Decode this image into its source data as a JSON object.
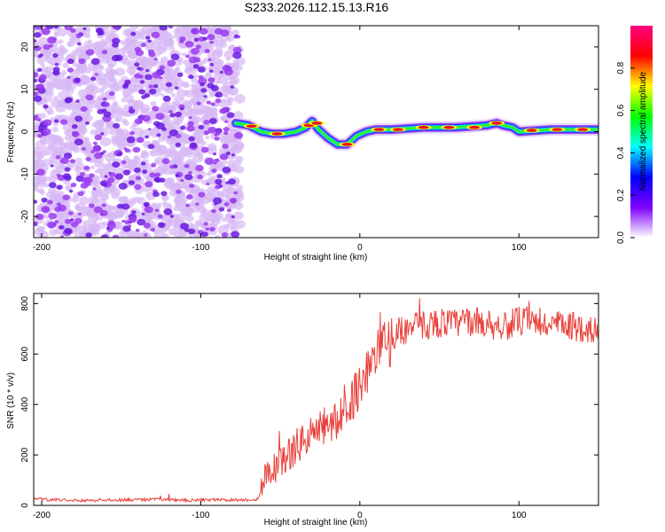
{
  "title": "S233.2026.112.15.13.R16",
  "colors": {
    "snr_line": "#e8413b",
    "ridge_core": "#e8141e",
    "scatter": "#8a2be2"
  },
  "chart_data": [
    {
      "type": "heatmap",
      "title": "S233.2026.112.15.13.R16",
      "xlabel": "Height of straight line (km)",
      "ylabel": "Frequency (Hz)",
      "xlim": [
        -205,
        150
      ],
      "ylim": [
        -25,
        25
      ],
      "x_ticks": [
        {
          "value": -200,
          "label": "-200"
        },
        {
          "value": -100,
          "label": "-100"
        },
        {
          "value": 0,
          "label": "0"
        },
        {
          "value": 100,
          "label": "100"
        }
      ],
      "y_ticks": [
        {
          "value": 20,
          "label": "20"
        },
        {
          "value": 10,
          "label": "10"
        },
        {
          "value": 0,
          "label": "0"
        },
        {
          "value": -10,
          "label": "-10"
        },
        {
          "value": -20,
          "label": "-20"
        }
      ],
      "noise_region_x": [
        -205,
        -75
      ],
      "ridge": {
        "x": [
          -78,
          -70,
          -62,
          -55,
          -48,
          -40,
          -34,
          -30,
          -26,
          -20,
          -14,
          -8,
          -2,
          4,
          10,
          20,
          40,
          60,
          80,
          86,
          90,
          96,
          100,
          120,
          150
        ],
        "y": [
          2,
          1.5,
          0,
          -0.5,
          -0.5,
          0,
          1,
          2.5,
          0.5,
          -1.5,
          -3,
          -3,
          -1,
          0,
          0.5,
          0.5,
          1,
          1,
          1.5,
          2,
          1.5,
          1,
          0,
          0.5,
          0.5
        ]
      },
      "colorbar": {
        "label": "Normalized spectral amplitude",
        "range": [
          0,
          1
        ],
        "ticks": [
          {
            "value": 0,
            "label": "0.0"
          },
          {
            "value": 0.2,
            "label": "0.2"
          },
          {
            "value": 0.4,
            "label": "0.4"
          },
          {
            "value": 0.6,
            "label": "0.6"
          },
          {
            "value": 0.8,
            "label": "0.8"
          }
        ],
        "stops": [
          "#ffffff",
          "#7f00ff",
          "#0000ff",
          "#00ffff",
          "#00ff00",
          "#ffff00",
          "#ff0000",
          "#ff0080"
        ]
      }
    },
    {
      "type": "line",
      "xlabel": "Height of straight line (km)",
      "ylabel": "SNR (10 * v/v)",
      "xlim": [
        -205,
        150
      ],
      "ylim": [
        0,
        840
      ],
      "x_ticks": [
        {
          "value": -200,
          "label": "-200"
        },
        {
          "value": -100,
          "label": "-100"
        },
        {
          "value": 0,
          "label": "0"
        },
        {
          "value": 100,
          "label": "100"
        }
      ],
      "y_ticks": [
        {
          "value": 0,
          "label": "0"
        },
        {
          "value": 200,
          "label": "200"
        },
        {
          "value": 400,
          "label": "400"
        },
        {
          "value": 600,
          "label": "600"
        },
        {
          "value": 800,
          "label": "800"
        }
      ],
      "series": [
        {
          "name": "SNR",
          "x": [
            -205,
            -190,
            -170,
            -150,
            -130,
            -110,
            -90,
            -70,
            -64,
            -62,
            -60,
            -58,
            -55,
            -50,
            -45,
            -40,
            -35,
            -30,
            -25,
            -22,
            -20,
            -15,
            -10,
            -5,
            0,
            5,
            10,
            15,
            20,
            25,
            30,
            40,
            50,
            60,
            70,
            80,
            90,
            100,
            110,
            120,
            130,
            140,
            150
          ],
          "y": [
            25,
            22,
            20,
            22,
            24,
            20,
            22,
            22,
            25,
            60,
            110,
            150,
            140,
            170,
            200,
            230,
            260,
            280,
            300,
            320,
            310,
            330,
            360,
            420,
            480,
            540,
            590,
            630,
            660,
            690,
            700,
            715,
            725,
            720,
            730,
            720,
            710,
            730,
            720,
            715,
            710,
            705,
            690
          ]
        }
      ]
    }
  ]
}
